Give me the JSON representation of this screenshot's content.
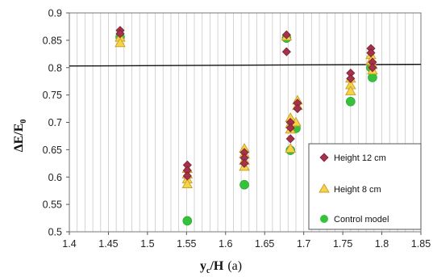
{
  "chart_data": {
    "type": "scatter",
    "xlabel": {
      "main": "y",
      "sub": "c",
      "rest": "/H",
      "tail": "(a)"
    },
    "ylabel": {
      "main": "ΔE/E",
      "sub": "0"
    },
    "xlim": [
      1.4,
      1.85
    ],
    "ylim": [
      0.5,
      0.9
    ],
    "xticks": [
      "1.4",
      "1.45",
      "1.5",
      "1.55",
      "1.6",
      "1.65",
      "1.7",
      "1.75",
      "1.8",
      "1.85"
    ],
    "yticks": [
      "0.5",
      "0.55",
      "0.6",
      "0.65",
      "0.7",
      "0.75",
      "0.8",
      "0.85",
      "0.9"
    ],
    "grid": {
      "vertical_minor": true,
      "vertical_step": 0.01,
      "horizontal": false
    },
    "reference_line": {
      "y": 0.803,
      "y_end": 0.806
    },
    "legend_position": "bottom-right",
    "series": [
      {
        "name": "Height 12 cm",
        "marker": "diamond",
        "color": "#a3324a",
        "points": [
          [
            1.465,
            0.868
          ],
          [
            1.465,
            0.862
          ],
          [
            1.551,
            0.622
          ],
          [
            1.551,
            0.612
          ],
          [
            1.551,
            0.602
          ],
          [
            1.624,
            0.645
          ],
          [
            1.624,
            0.635
          ],
          [
            1.624,
            0.625
          ],
          [
            1.678,
            0.86
          ],
          [
            1.678,
            0.829
          ],
          [
            1.683,
            0.7
          ],
          [
            1.683,
            0.69
          ],
          [
            1.683,
            0.67
          ],
          [
            1.692,
            0.735
          ],
          [
            1.692,
            0.725
          ],
          [
            1.76,
            0.79
          ],
          [
            1.76,
            0.78
          ],
          [
            1.786,
            0.835
          ],
          [
            1.786,
            0.827
          ],
          [
            1.788,
            0.81
          ],
          [
            1.788,
            0.8
          ]
        ]
      },
      {
        "name": "Height 8 cm",
        "marker": "triangle",
        "color": "#f5d545",
        "stroke": "#c99a2c",
        "points": [
          [
            1.465,
            0.855
          ],
          [
            1.465,
            0.845
          ],
          [
            1.551,
            0.615
          ],
          [
            1.551,
            0.605
          ],
          [
            1.551,
            0.596
          ],
          [
            1.551,
            0.587
          ],
          [
            1.624,
            0.652
          ],
          [
            1.624,
            0.642
          ],
          [
            1.624,
            0.63
          ],
          [
            1.624,
            0.619
          ],
          [
            1.678,
            0.857
          ],
          [
            1.683,
            0.708
          ],
          [
            1.683,
            0.697
          ],
          [
            1.683,
            0.687
          ],
          [
            1.683,
            0.652
          ],
          [
            1.692,
            0.74
          ],
          [
            1.692,
            0.73
          ],
          [
            1.69,
            0.7
          ],
          [
            1.76,
            0.78
          ],
          [
            1.76,
            0.768
          ],
          [
            1.76,
            0.757
          ],
          [
            1.786,
            0.823
          ],
          [
            1.786,
            0.812
          ],
          [
            1.788,
            0.805
          ],
          [
            1.788,
            0.795
          ]
        ]
      },
      {
        "name": "Control model",
        "marker": "circle",
        "color": "#35c23a",
        "points": [
          [
            1.465,
            0.856
          ],
          [
            1.551,
            0.52
          ],
          [
            1.624,
            0.586
          ],
          [
            1.678,
            0.854
          ],
          [
            1.683,
            0.649
          ],
          [
            1.69,
            0.689
          ],
          [
            1.76,
            0.738
          ],
          [
            1.786,
            0.8
          ],
          [
            1.788,
            0.782
          ]
        ]
      }
    ]
  }
}
